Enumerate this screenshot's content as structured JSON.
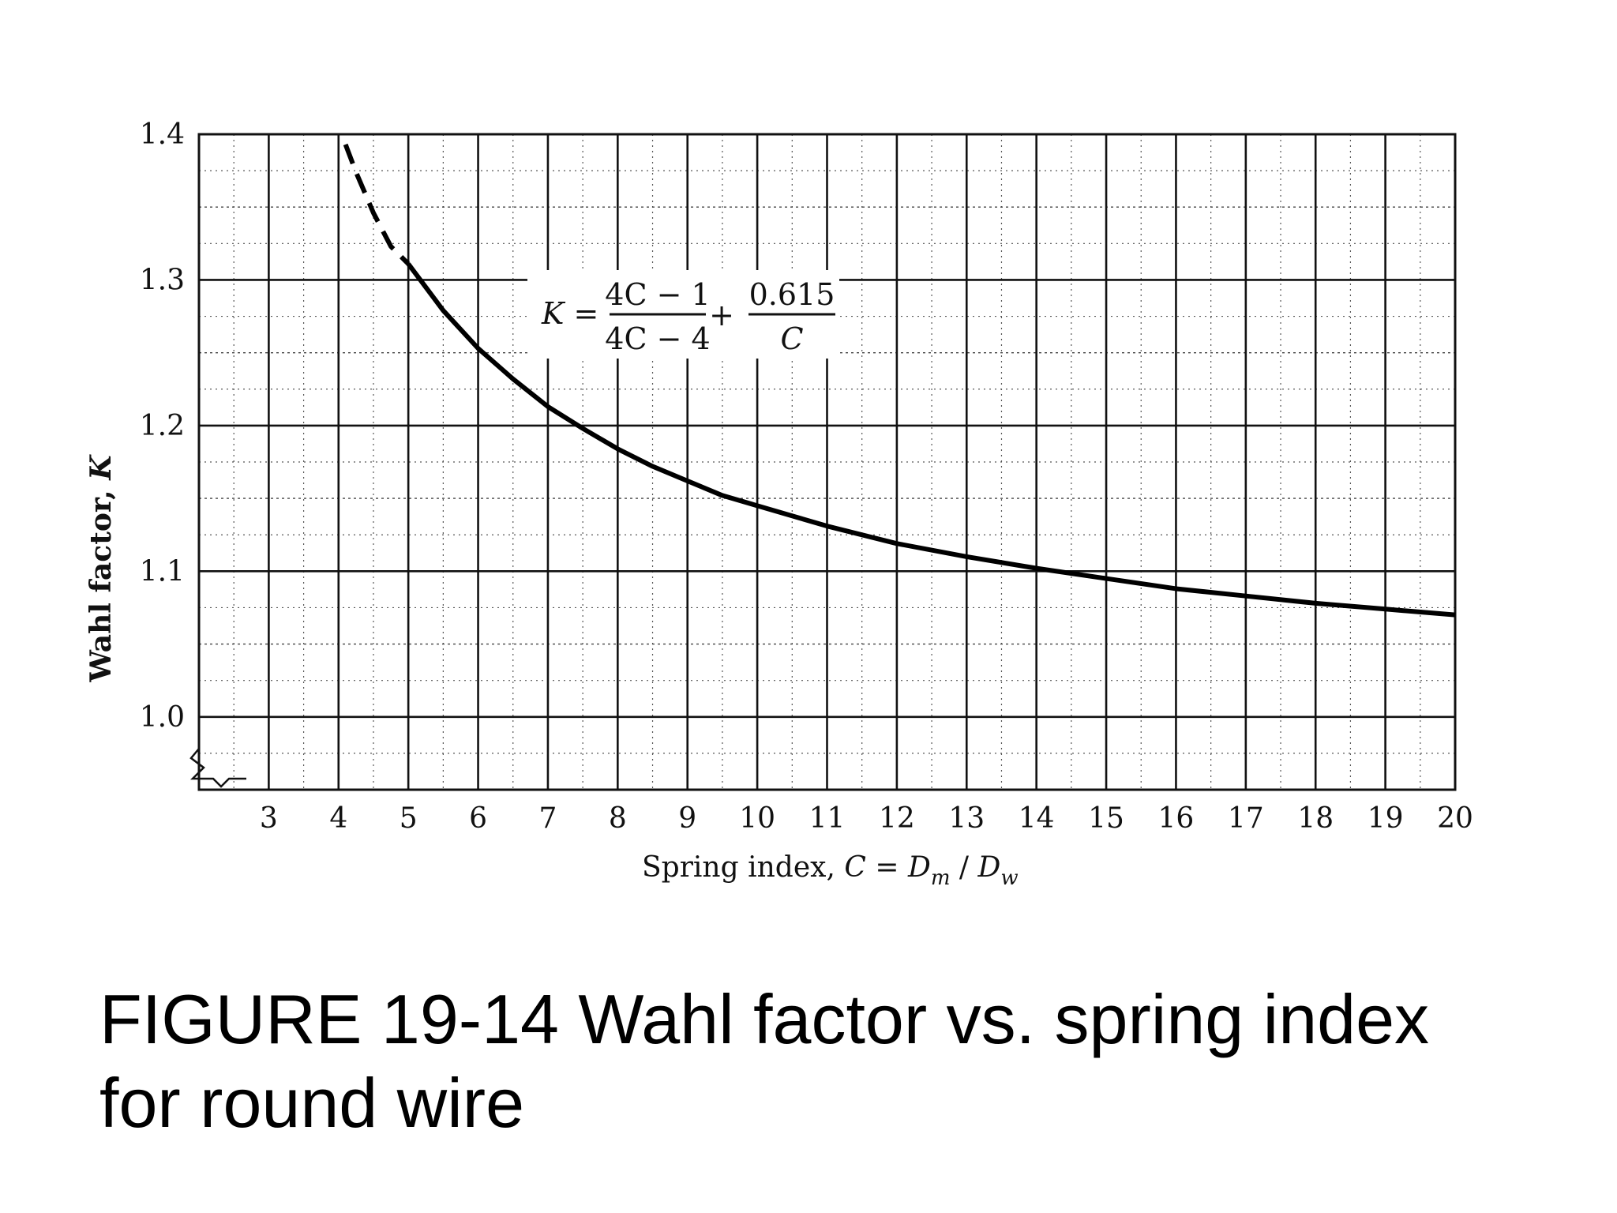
{
  "chart_data": {
    "type": "line",
    "formula": {
      "lhs": "K =",
      "frac1_num": "4C − 1",
      "frac1_den": "4C − 4",
      "plus": "+",
      "frac2_num": "0.615",
      "frac2_den": "C"
    },
    "xlabel": {
      "prefix": "Spring index, ",
      "C": "C",
      "eq": " = ",
      "D1": "D",
      "sub1": "m",
      "slash": " / ",
      "D2": "D",
      "sub2": "w"
    },
    "ylabel": {
      "prefix": "Wahl factor, ",
      "K": "K"
    },
    "xlim": [
      2,
      20
    ],
    "ylim": [
      0.95,
      1.4
    ],
    "x_ticks": [
      3,
      4,
      5,
      6,
      7,
      8,
      9,
      10,
      11,
      12,
      13,
      14,
      15,
      16,
      17,
      18,
      19,
      20
    ],
    "y_ticks": [
      "1.0",
      "1.1",
      "1.2",
      "1.3",
      "1.4"
    ],
    "series": [
      {
        "style": "dashed",
        "x": [
          4.1,
          4.25,
          4.5,
          4.75,
          5.0
        ],
        "y": [
          1.393,
          1.374,
          1.346,
          1.323,
          1.311
        ]
      },
      {
        "style": "solid",
        "x": [
          5.0,
          5.5,
          6,
          6.5,
          7,
          7.5,
          8,
          8.5,
          9,
          9.5,
          10,
          11,
          12,
          13,
          14,
          15,
          16,
          17,
          18,
          19,
          20
        ],
        "y": [
          1.311,
          1.279,
          1.253,
          1.232,
          1.213,
          1.198,
          1.184,
          1.172,
          1.162,
          1.152,
          1.145,
          1.131,
          1.119,
          1.11,
          1.102,
          1.095,
          1.088,
          1.083,
          1.078,
          1.074,
          1.07
        ]
      }
    ]
  },
  "caption": {
    "line1": "FIGURE 19-14 Wahl factor vs. spring index",
    "line2": "for round wire"
  }
}
